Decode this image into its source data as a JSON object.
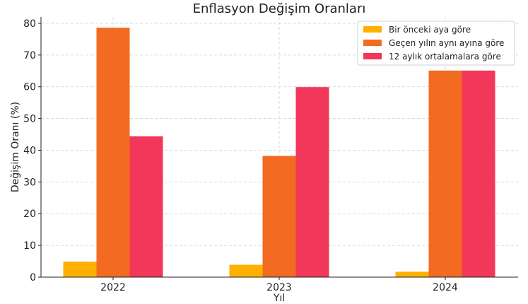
{
  "chart_data": {
    "type": "bar",
    "title": "Enflasyon Değişim Oranları",
    "xlabel": "Yıl",
    "ylabel": "Değişim Oranı (%)",
    "categories": [
      "2022",
      "2023",
      "2024"
    ],
    "ylim": [
      0,
      82
    ],
    "yticks": [
      0,
      10,
      20,
      30,
      40,
      50,
      60,
      70,
      80
    ],
    "grid": true,
    "legend_position": "top-right",
    "series": [
      {
        "name": "Bir önceki aya göre",
        "color": "#FFB000",
        "values": [
          4.9,
          3.9,
          1.7
        ]
      },
      {
        "name": "Geçen yılın aynı ayına göre",
        "color": "#F26B21",
        "values": [
          78.6,
          38.2,
          65.1
        ]
      },
      {
        "name": "12 aylık ortalamalara göre",
        "color": "#F2375A",
        "values": [
          44.4,
          59.9,
          65.1
        ]
      }
    ]
  }
}
